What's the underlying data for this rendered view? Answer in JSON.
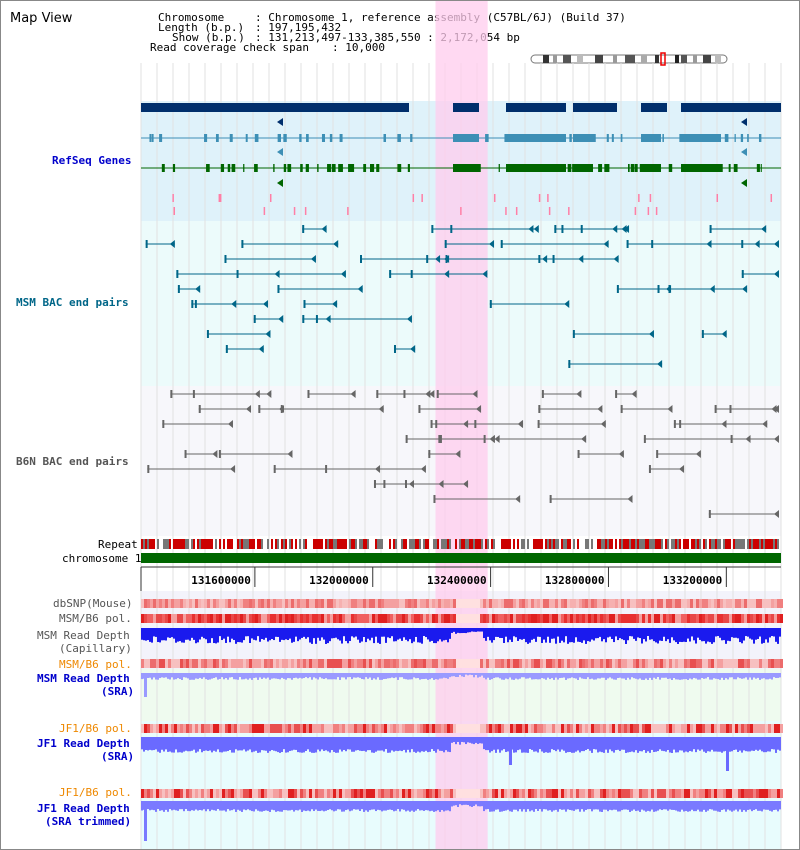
{
  "page": {
    "title": "Map View"
  },
  "info": {
    "chromosome": {
      "key": "Chromosome",
      "value": ": Chromosome 1, reference assembly (C57BL/6J) (Build 37)"
    },
    "length": {
      "key": "Length (b.p.)",
      "value": ": 197,195,432"
    },
    "show": {
      "key": "Show (b.p.)",
      "value": ": 131,213,497-133,385,550 : 2,172,054 bp"
    },
    "coverage": {
      "key": "Read coverage check span",
      "value": ": 10,000"
    }
  },
  "colors": {
    "refseq": "#0000cc",
    "msm_bac": "#006688",
    "b6n_bac": "#555555",
    "orange": "#ee8800",
    "blue": "#0000cc",
    "highlight": "#ffccee",
    "depth_blue": "#6666ff",
    "capillary_blue": "#0000ff"
  },
  "tracks": {
    "refseq": {
      "label": "RefSeq Genes"
    },
    "msm_bac": {
      "label": "MSM BAC end pairs"
    },
    "b6n_bac": {
      "label": "B6N BAC end pairs"
    },
    "repeat": {
      "label": "Repeat"
    },
    "chromosome": {
      "label": "chromosome 1"
    },
    "dbsnp": {
      "label": "dbSNP(Mouse)"
    },
    "msm_b6_pol1": {
      "label": "MSM/B6 pol."
    },
    "msm_depth_cap": {
      "label_line1": "MSM Read Depth",
      "label_line2": "(Capillary)"
    },
    "msm_b6_pol2": {
      "label": "MSM/B6 pol."
    },
    "msm_depth_sra": {
      "label_line1": "MSM Read Depth",
      "label_line2": "(SRA)"
    },
    "jf1_b6_pol1": {
      "label": "JF1/B6 pol."
    },
    "jf1_depth_sra": {
      "label_line1": "JF1 Read Depth",
      "label_line2": "(SRA)"
    },
    "jf1_b6_pol2": {
      "label": "JF1/B6 pol."
    },
    "jf1_depth_trim": {
      "label_line1": "JF1 Read Depth",
      "label_line2": "(SRA trimmed)"
    }
  },
  "axis": {
    "ticks": [
      {
        "value": 131600000,
        "label": "131600000"
      },
      {
        "value": 132000000,
        "label": "132000000"
      },
      {
        "value": 132400000,
        "label": "132400000"
      },
      {
        "value": 132800000,
        "label": "132800000"
      },
      {
        "value": 133200000,
        "label": "133200000"
      }
    ],
    "start": 131213497,
    "end": 133385550,
    "highlight_start": 132213000,
    "highlight_end": 132390000
  }
}
